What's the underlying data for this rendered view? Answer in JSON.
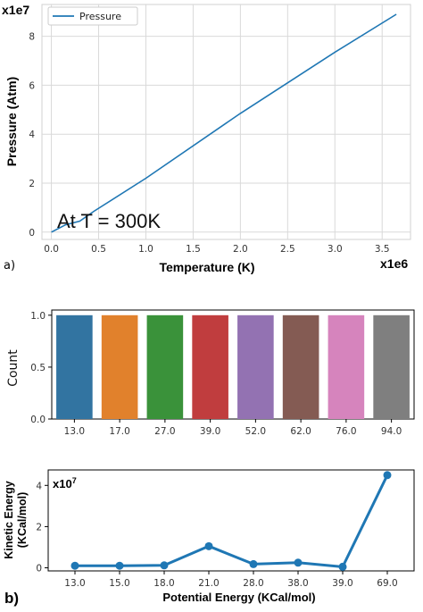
{
  "chart_data": [
    {
      "type": "line",
      "panel_label": "a)",
      "multiplier_y": "x1e7",
      "multiplier_x": "x1e6",
      "xlabel": "Temperature (K)",
      "ylabel": "Pressure (Atm)",
      "annotation": "At T = 300K",
      "legend": "top-left",
      "grid": true,
      "xlim": [
        -0.1,
        3.8
      ],
      "ylim": [
        -0.3,
        9.3
      ],
      "xticks": [
        "0.0",
        "0.5",
        "1.0",
        "1.5",
        "2.0",
        "2.5",
        "3.0",
        "3.5"
      ],
      "yticks": [
        "0",
        "2",
        "4",
        "6",
        "8"
      ],
      "series": [
        {
          "name": "Pressure",
          "color": "#1f77b4",
          "x": [
            0.0,
            0.15,
            0.3,
            0.45,
            1.0,
            2.0,
            3.0,
            3.65
          ],
          "y": [
            0.0,
            0.3,
            0.45,
            0.85,
            2.2,
            4.85,
            7.35,
            8.9
          ]
        }
      ]
    },
    {
      "type": "bar",
      "categories": [
        "13.0",
        "17.0",
        "27.0",
        "39.0",
        "52.0",
        "62.0",
        "76.0",
        "94.0"
      ],
      "values": [
        1,
        1,
        1,
        1,
        1,
        1,
        1,
        1
      ],
      "colors": [
        "#3274a1",
        "#e1812c",
        "#3a923a",
        "#c03d3e",
        "#9372b2",
        "#845b53",
        "#d684bd",
        "#7f7f7f"
      ],
      "ylabel": "Count",
      "ylim": [
        0,
        1.05
      ],
      "yticks": [
        "0.0",
        "0.5",
        "1.0"
      ],
      "grid": false
    },
    {
      "type": "line",
      "panel_label": "b)",
      "multiplier_y": "x10",
      "multiplier_y_exp": "7",
      "categories": [
        "13.0",
        "15.0",
        "18.0",
        "21.0",
        "28.0",
        "38.0",
        "39.0",
        "69.0"
      ],
      "values": [
        0.1,
        0.1,
        0.12,
        1.05,
        0.18,
        0.25,
        0.05,
        4.5
      ],
      "color": "#1f77b4",
      "xlabel": "Potential Energy (KCal/mol)",
      "ylabel_line1": "Kinetic Energy",
      "ylabel_line2": "(KCal/mol)",
      "ylim": [
        -0.15,
        4.75
      ],
      "yticks": [
        "0",
        "2",
        "4"
      ],
      "grid": false
    }
  ]
}
